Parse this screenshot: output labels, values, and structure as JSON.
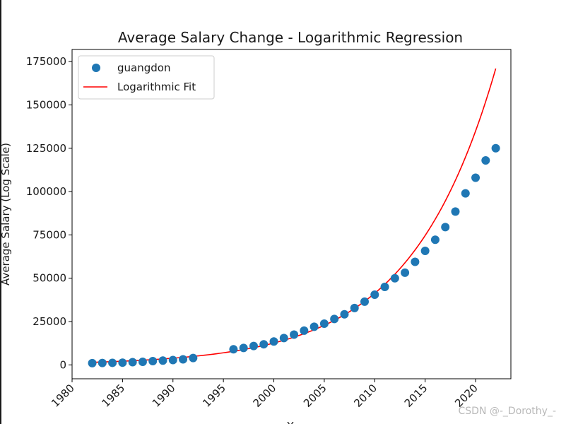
{
  "chart_data": {
    "type": "scatter",
    "title": "Average Salary Change - Logarithmic Regression",
    "xlabel": "Y",
    "ylabel": "Average Salary (Log Scale)",
    "xlim": [
      1980,
      2023.5
    ],
    "ylim": [
      -8000,
      182000
    ],
    "xticks": [
      1980,
      1985,
      1990,
      1995,
      2000,
      2005,
      2010,
      2015,
      2020
    ],
    "yticks": [
      0,
      25000,
      50000,
      75000,
      100000,
      125000,
      150000,
      175000
    ],
    "legend_position": "upper-left",
    "series": [
      {
        "name": "guangdon",
        "kind": "scatter",
        "color": "#1f77b4",
        "x": [
          1982,
          1983,
          1984,
          1985,
          1986,
          1987,
          1988,
          1989,
          1990,
          1991,
          1992,
          1996,
          1997,
          1998,
          1999,
          2000,
          2001,
          2002,
          2003,
          2004,
          2005,
          2006,
          2007,
          2008,
          2009,
          2010,
          2011,
          2012,
          2013,
          2014,
          2015,
          2016,
          2017,
          2018,
          2019,
          2020,
          2021,
          2022
        ],
        "y": [
          1000,
          1100,
          1200,
          1300,
          1600,
          1800,
          2200,
          2500,
          2800,
          3200,
          4000,
          9000,
          9800,
          10900,
          11900,
          13500,
          15500,
          17500,
          19800,
          22000,
          23800,
          26500,
          29200,
          32800,
          36500,
          40500,
          45000,
          50000,
          53200,
          59500,
          65800,
          72200,
          79500,
          88500,
          99000,
          108000,
          118000,
          125000
        ]
      },
      {
        "name": "Logarithmic Fit",
        "kind": "line",
        "color": "#ff0000",
        "x0": 1982,
        "x1": 2022,
        "y0": 1500,
        "y1": 171000
      }
    ]
  },
  "watermark": "CSDN @-_Dorothy_-"
}
